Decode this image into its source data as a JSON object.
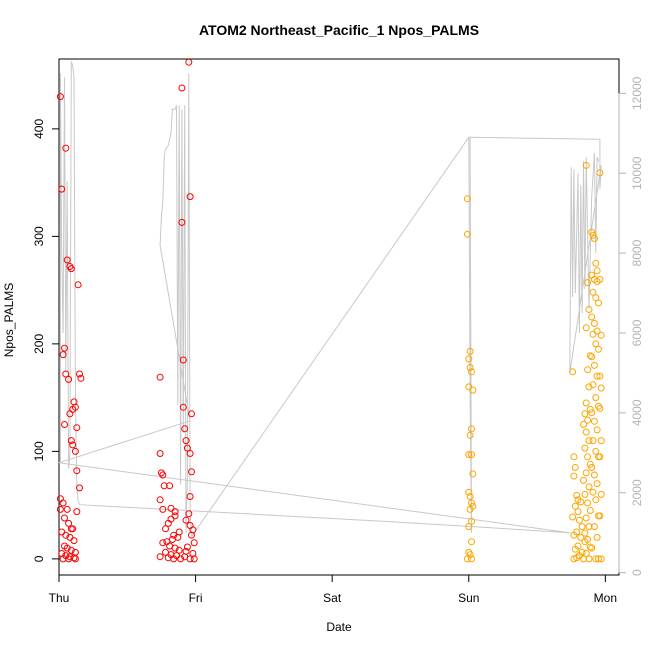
{
  "chart_data": {
    "type": "scatter",
    "title": "ATOM2 Northeast_Pacific_1 Npos_PALMS",
    "xlabel": "Date",
    "ylabel": "Npos_PALMS",
    "x_ticks": [
      "Thu",
      "Fri",
      "Sat",
      "Sun",
      "Mon"
    ],
    "xlim": [
      0,
      4.1
    ],
    "ylim": [
      -15,
      465
    ],
    "y_ticks": [
      0,
      100,
      200,
      300,
      400
    ],
    "y2lim": [
      -60,
      12860
    ],
    "y2_ticks": [
      0,
      2000,
      4000,
      6000,
      8000,
      10000,
      12000
    ],
    "colors": {
      "series1": "#ff0000",
      "series2": "#ffa500",
      "line": "#c8c8c8",
      "axis": "#000000",
      "axis_right": "#b3b3b3"
    },
    "series": [
      {
        "color": "#ff0000",
        "points": [
          [
            0.01,
            430
          ],
          [
            0.02,
            344
          ],
          [
            0.05,
            382
          ],
          [
            0.06,
            278
          ],
          [
            0.08,
            272
          ],
          [
            0.09,
            270
          ],
          [
            0.04,
            196
          ],
          [
            0.03,
            190
          ],
          [
            0.05,
            172
          ],
          [
            0.07,
            167
          ],
          [
            0.14,
            255
          ],
          [
            0.15,
            172
          ],
          [
            0.16,
            168
          ],
          [
            0.11,
            146
          ],
          [
            0.12,
            141
          ],
          [
            0.1,
            139
          ],
          [
            0.08,
            135
          ],
          [
            0.04,
            125
          ],
          [
            0.13,
            122
          ],
          [
            0.09,
            110
          ],
          [
            0.1,
            106
          ],
          [
            0.12,
            100
          ],
          [
            0.13,
            82
          ],
          [
            0.15,
            66
          ],
          [
            0.01,
            56
          ],
          [
            0.03,
            52
          ],
          [
            0.06,
            46
          ],
          [
            0.13,
            44
          ],
          [
            0.01,
            46
          ],
          [
            0.04,
            38
          ],
          [
            0.07,
            33
          ],
          [
            0.09,
            28
          ],
          [
            0.02,
            25
          ],
          [
            0.05,
            22
          ],
          [
            0.08,
            20
          ],
          [
            0.11,
            17
          ],
          [
            0.04,
            12
          ],
          [
            0.06,
            10
          ],
          [
            0.09,
            8
          ],
          [
            0.02,
            5
          ],
          [
            0.05,
            3
          ],
          [
            0.08,
            2
          ],
          [
            0.11,
            1
          ],
          [
            0.03,
            0
          ],
          [
            0.07,
            0
          ],
          [
            0.12,
            0
          ],
          [
            0.1,
            28
          ],
          [
            0.12,
            6
          ],
          [
            0.74,
            169
          ],
          [
            0.74,
            98
          ],
          [
            0.75,
            80
          ],
          [
            0.76,
            78
          ],
          [
            0.77,
            68
          ],
          [
            0.74,
            55
          ],
          [
            0.76,
            46
          ],
          [
            0.81,
            68
          ],
          [
            0.82,
            47
          ],
          [
            0.85,
            44
          ],
          [
            0.85,
            40
          ],
          [
            0.82,
            37
          ],
          [
            0.8,
            33
          ],
          [
            0.78,
            28
          ],
          [
            0.84,
            22
          ],
          [
            0.87,
            20
          ],
          [
            0.83,
            18
          ],
          [
            0.79,
            16
          ],
          [
            0.76,
            15
          ],
          [
            0.81,
            12
          ],
          [
            0.85,
            10
          ],
          [
            0.88,
            8
          ],
          [
            0.78,
            6
          ],
          [
            0.82,
            4
          ],
          [
            0.86,
            3
          ],
          [
            0.74,
            2
          ],
          [
            0.8,
            1
          ],
          [
            0.84,
            0
          ],
          [
            0.89,
            0
          ],
          [
            0.9,
            438
          ],
          [
            0.9,
            313
          ],
          [
            0.91,
            185
          ],
          [
            0.91,
            141
          ],
          [
            0.92,
            121
          ],
          [
            0.93,
            110
          ],
          [
            0.94,
            103
          ],
          [
            0.95,
            462
          ],
          [
            0.96,
            337
          ],
          [
            0.97,
            135
          ],
          [
            0.96,
            98
          ],
          [
            0.97,
            81
          ],
          [
            0.96,
            58
          ],
          [
            0.95,
            42
          ],
          [
            0.98,
            27
          ],
          [
            0.97,
            22
          ],
          [
            0.99,
            15
          ],
          [
            0.94,
            11
          ],
          [
            0.93,
            7
          ],
          [
            0.98,
            5
          ],
          [
            0.92,
            2
          ],
          [
            0.96,
            0
          ],
          [
            0.99,
            0
          ],
          [
            0.93,
            36
          ],
          [
            0.96,
            31
          ],
          [
            0.88,
            25
          ]
        ]
      },
      {
        "color": "#ffa500",
        "points": [
          [
            2.99,
            335
          ],
          [
            2.99,
            302
          ],
          [
            3.01,
            193
          ],
          [
            3.0,
            186
          ],
          [
            3.01,
            178
          ],
          [
            3.02,
            174
          ],
          [
            3.0,
            160
          ],
          [
            3.03,
            157
          ],
          [
            3.02,
            121
          ],
          [
            3.01,
            115
          ],
          [
            3.0,
            97
          ],
          [
            3.02,
            97
          ],
          [
            3.03,
            79
          ],
          [
            3.0,
            62
          ],
          [
            3.01,
            58
          ],
          [
            3.02,
            52
          ],
          [
            3.03,
            49
          ],
          [
            3.01,
            46
          ],
          [
            3.02,
            35
          ],
          [
            3.0,
            30
          ],
          [
            3.02,
            16
          ],
          [
            3.0,
            6
          ],
          [
            3.01,
            4
          ],
          [
            2.99,
            0
          ],
          [
            3.02,
            0
          ],
          [
            3.76,
            174
          ],
          [
            3.77,
            95
          ],
          [
            3.78,
            85
          ],
          [
            3.77,
            77
          ],
          [
            3.79,
            59
          ],
          [
            3.8,
            55
          ],
          [
            3.82,
            53
          ],
          [
            3.78,
            49
          ],
          [
            3.8,
            44
          ],
          [
            3.76,
            39
          ],
          [
            3.81,
            36
          ],
          [
            3.83,
            30
          ],
          [
            3.79,
            25
          ],
          [
            3.77,
            22
          ],
          [
            3.82,
            20
          ],
          [
            3.85,
            16
          ],
          [
            3.8,
            12
          ],
          [
            3.78,
            9
          ],
          [
            3.83,
            6
          ],
          [
            3.81,
            3
          ],
          [
            3.79,
            1
          ],
          [
            3.77,
            0
          ],
          [
            3.84,
            0
          ],
          [
            3.86,
            366
          ],
          [
            3.87,
            257
          ],
          [
            3.88,
            232
          ],
          [
            3.86,
            215
          ],
          [
            3.89,
            189
          ],
          [
            3.87,
            176
          ],
          [
            3.88,
            160
          ],
          [
            3.86,
            145
          ],
          [
            3.89,
            139
          ],
          [
            3.85,
            135
          ],
          [
            3.87,
            129
          ],
          [
            3.84,
            125
          ],
          [
            3.86,
            118
          ],
          [
            3.88,
            110
          ],
          [
            3.85,
            103
          ],
          [
            3.87,
            95
          ],
          [
            3.89,
            88
          ],
          [
            3.86,
            80
          ],
          [
            3.84,
            73
          ],
          [
            3.88,
            67
          ],
          [
            3.85,
            60
          ],
          [
            3.87,
            52
          ],
          [
            3.89,
            45
          ],
          [
            3.86,
            38
          ],
          [
            3.88,
            30
          ],
          [
            3.85,
            24
          ],
          [
            3.87,
            18
          ],
          [
            3.89,
            11
          ],
          [
            3.86,
            5
          ],
          [
            3.88,
            0
          ],
          [
            3.9,
            304
          ],
          [
            3.91,
            301
          ],
          [
            3.92,
            298
          ],
          [
            3.93,
            275
          ],
          [
            3.94,
            268
          ],
          [
            3.9,
            264
          ],
          [
            3.92,
            260
          ],
          [
            3.94,
            258
          ],
          [
            3.91,
            248
          ],
          [
            3.93,
            243
          ],
          [
            3.95,
            238
          ],
          [
            3.9,
            225
          ],
          [
            3.92,
            219
          ],
          [
            3.94,
            212
          ],
          [
            3.91,
            209
          ],
          [
            3.93,
            200
          ],
          [
            3.95,
            195
          ],
          [
            3.9,
            188
          ],
          [
            3.92,
            180
          ],
          [
            3.94,
            170
          ],
          [
            3.91,
            162
          ],
          [
            3.93,
            150
          ],
          [
            3.95,
            142
          ],
          [
            3.9,
            136
          ],
          [
            3.92,
            128
          ],
          [
            3.94,
            120
          ],
          [
            3.91,
            110
          ],
          [
            3.93,
            100
          ],
          [
            3.95,
            95
          ],
          [
            3.9,
            85
          ],
          [
            3.92,
            78
          ],
          [
            3.94,
            70
          ],
          [
            3.91,
            62
          ],
          [
            3.93,
            55
          ],
          [
            3.95,
            40
          ],
          [
            3.92,
            30
          ],
          [
            3.94,
            20
          ],
          [
            3.9,
            10
          ],
          [
            3.93,
            0
          ],
          [
            3.95,
            0
          ],
          [
            3.96,
            359
          ],
          [
            3.96,
            260
          ],
          [
            3.97,
            208
          ],
          [
            3.96,
            170
          ],
          [
            3.97,
            159
          ],
          [
            3.96,
            140
          ],
          [
            3.97,
            110
          ],
          [
            3.96,
            95
          ],
          [
            3.97,
            60
          ],
          [
            3.96,
            40
          ],
          [
            3.97,
            0
          ]
        ]
      },
      {
        "axis": "right",
        "color": "#c8c8c8",
        "points": [
          [
            0.0,
            2750
          ],
          [
            0.01,
            2800
          ],
          [
            0.01,
            12500
          ],
          [
            0.02,
            8000
          ],
          [
            0.03,
            6000
          ],
          [
            0.04,
            12400
          ],
          [
            0.05,
            5000
          ],
          [
            0.06,
            9800
          ],
          [
            0.07,
            2600
          ],
          [
            0.08,
            3000
          ],
          [
            0.09,
            12800
          ],
          [
            0.1,
            12700
          ],
          [
            0.11,
            12400
          ],
          [
            0.12,
            4500
          ],
          [
            0.13,
            2200
          ],
          [
            0.14,
            1800
          ],
          [
            0.15,
            1700
          ],
          [
            0.15,
            1700
          ],
          [
            2.3,
            1300
          ],
          [
            3.04,
            1150
          ],
          [
            3.74,
            1000
          ],
          [
            0.0,
            2750
          ],
          [
            0.96,
            3800
          ],
          [
            0.74,
            8200
          ],
          [
            0.75,
            8900
          ],
          [
            0.76,
            9300
          ],
          [
            0.77,
            10400
          ],
          [
            0.78,
            10600
          ],
          [
            0.8,
            10700
          ],
          [
            0.82,
            11000
          ],
          [
            0.83,
            11600
          ],
          [
            0.85,
            11600
          ],
          [
            0.86,
            11700
          ],
          [
            0.87,
            4200
          ],
          [
            0.88,
            11700
          ],
          [
            0.89,
            2200
          ],
          [
            0.9,
            11600
          ],
          [
            0.91,
            3500
          ],
          [
            0.92,
            11700
          ],
          [
            0.93,
            1000
          ],
          [
            0.94,
            2400
          ],
          [
            0.95,
            12500
          ],
          [
            0.96,
            1500
          ],
          [
            0.97,
            900
          ],
          [
            3.0,
            10900
          ],
          [
            3.01,
            4400
          ],
          [
            3.02,
            1000
          ],
          [
            3.01,
            10900
          ],
          [
            3.96,
            10850
          ],
          [
            3.96,
            9600
          ],
          [
            3.97,
            10200
          ],
          [
            3.74,
            5000
          ],
          [
            3.75,
            10150
          ],
          [
            3.76,
            6900
          ],
          [
            3.77,
            10100
          ],
          [
            3.78,
            7000
          ],
          [
            3.8,
            10000
          ],
          [
            3.81,
            6000
          ],
          [
            3.82,
            9700
          ],
          [
            3.83,
            6500
          ],
          [
            3.84,
            10300
          ],
          [
            3.85,
            7100
          ],
          [
            3.86,
            10400
          ],
          [
            3.88,
            6600
          ],
          [
            3.9,
            9400
          ],
          [
            3.92,
            10500
          ],
          [
            3.93,
            8000
          ],
          [
            3.94,
            10400
          ],
          [
            3.95,
            10300
          ]
        ]
      }
    ]
  }
}
